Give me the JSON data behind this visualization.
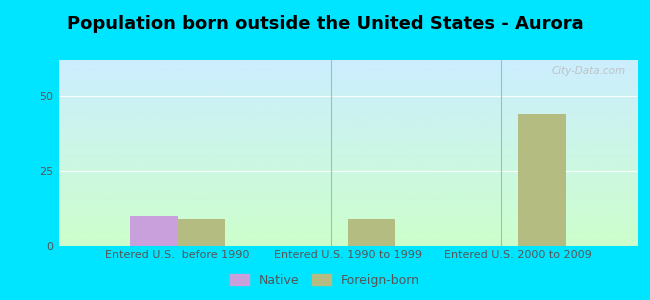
{
  "title": "Population born outside the United States - Aurora",
  "categories": [
    "Entered U.S.  before 1990",
    "Entered U.S. 1990 to 1999",
    "Entered U.S. 2000 to 2009"
  ],
  "native_values": [
    10,
    0,
    0
  ],
  "foreign_values": [
    9,
    9,
    44
  ],
  "native_color": "#c9a0dc",
  "foreign_color": "#b5bc82",
  "background_outer": "#00e5ff",
  "gradient_top": "#cceeff",
  "gradient_bottom": "#ccffcc",
  "ylim": [
    0,
    62
  ],
  "yticks": [
    0,
    25,
    50
  ],
  "bar_width": 0.28,
  "title_fontsize": 13,
  "tick_fontsize": 8,
  "legend_fontsize": 9,
  "watermark_text": "City-Data.com",
  "watermark_color": "#bbbbbb",
  "grid_color": "#dddddd",
  "separator_color": "#88ccaa"
}
